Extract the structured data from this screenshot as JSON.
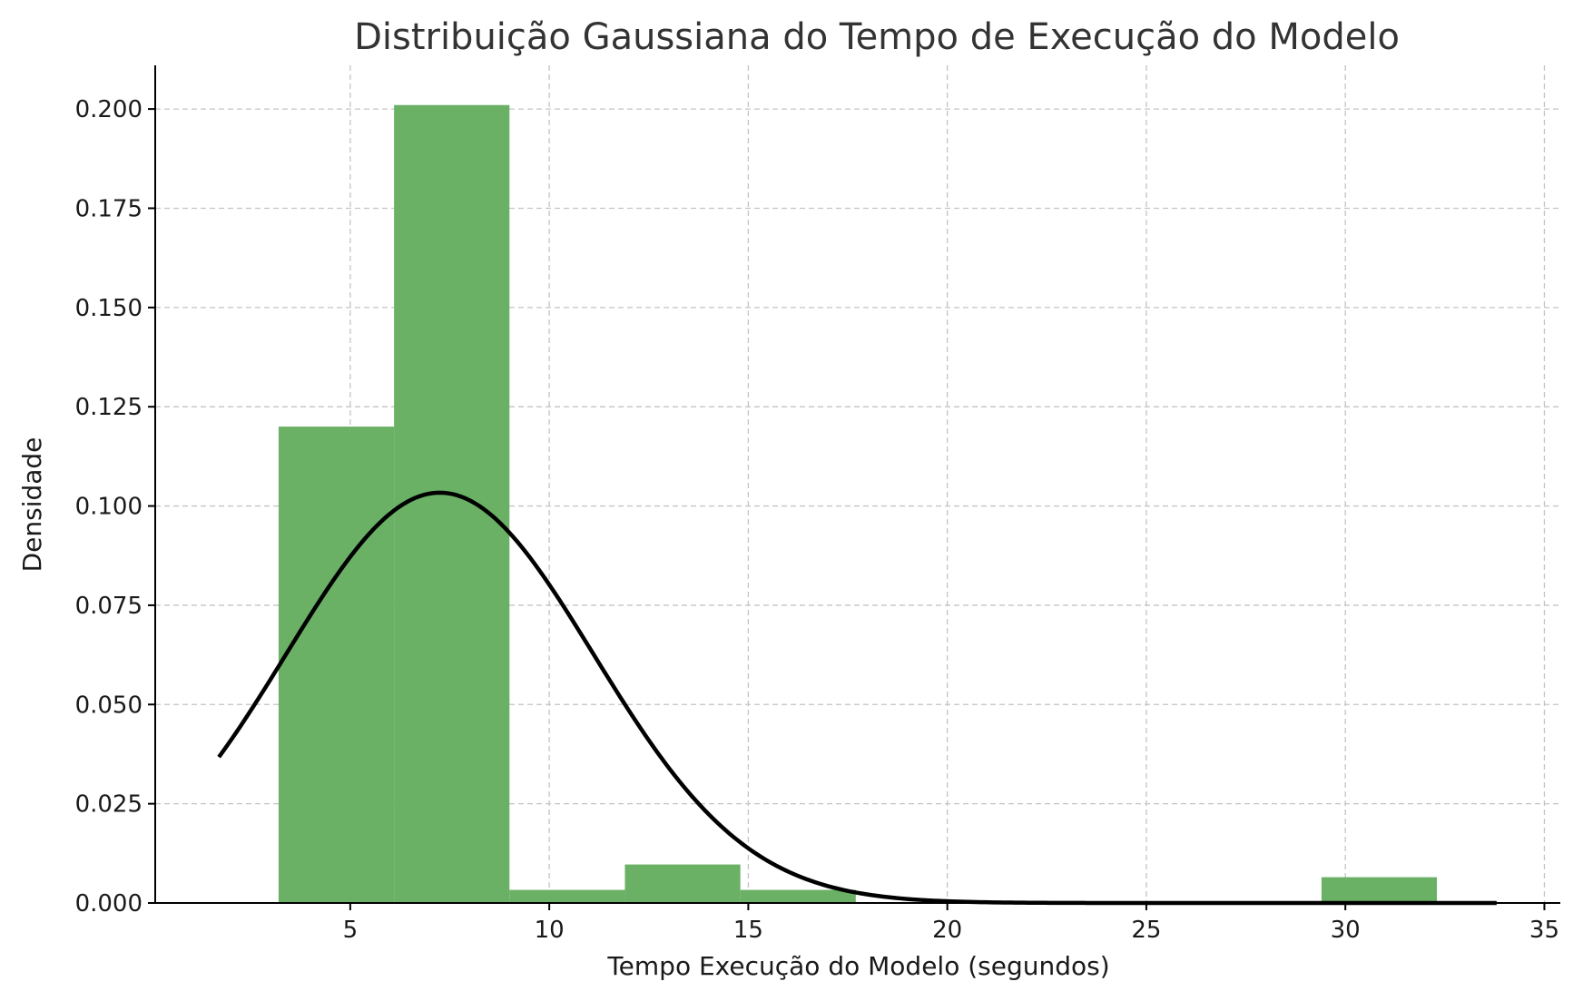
{
  "chart_data": {
    "type": "bar",
    "subtype": "histogram-with-density-curve",
    "title": "Distribuição Gaussiana do Tempo de Execução do Modelo",
    "xlabel": "Tempo Execução do Modelo (segundos)",
    "ylabel": "Densidade",
    "xlim": [
      0.1,
      35.4
    ],
    "ylim": [
      0,
      0.211
    ],
    "xticks": [
      5,
      10,
      15,
      20,
      25,
      30,
      35
    ],
    "yticks": [
      0.0,
      0.025,
      0.05,
      0.075,
      0.1,
      0.125,
      0.15,
      0.175,
      0.2
    ],
    "ytick_labels": [
      "0.000",
      "0.025",
      "0.050",
      "0.075",
      "0.100",
      "0.125",
      "0.150",
      "0.175",
      "0.200"
    ],
    "grid": true,
    "legend": "none",
    "bar_color": "#6ab166",
    "curve_color": "#000000",
    "bins": [
      {
        "x0": 3.2,
        "x1": 6.1,
        "value": 0.12
      },
      {
        "x0": 6.1,
        "x1": 9.0,
        "value": 0.201
      },
      {
        "x0": 9.0,
        "x1": 11.9,
        "value": 0.0033
      },
      {
        "x0": 11.9,
        "x1": 14.8,
        "value": 0.0097
      },
      {
        "x0": 14.8,
        "x1": 17.7,
        "value": 0.0033
      },
      {
        "x0": 17.7,
        "x1": 20.6,
        "value": 0
      },
      {
        "x0": 20.6,
        "x1": 23.5,
        "value": 0
      },
      {
        "x0": 23.5,
        "x1": 26.4,
        "value": 0
      },
      {
        "x0": 26.4,
        "x1": 29.4,
        "value": 0
      },
      {
        "x0": 29.4,
        "x1": 32.3,
        "value": 0.0065
      }
    ],
    "density_curve": {
      "distribution": "normal",
      "mean": 7.25,
      "std": 3.86,
      "x_range": [
        1.7,
        33.8
      ]
    }
  }
}
